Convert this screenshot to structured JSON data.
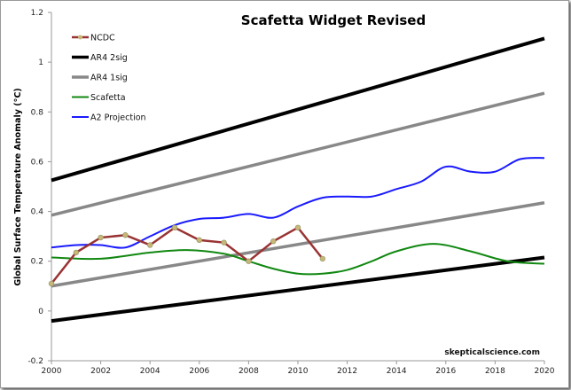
{
  "chart_data": {
    "type": "line",
    "title": "Scafetta Widget Revised",
    "ylabel": "Global Surface Temperature Anomaly (°C)",
    "xlabel": "",
    "xlim": [
      2000,
      2020
    ],
    "ylim": [
      -0.2,
      1.2
    ],
    "xticks": [
      "2000",
      "2002",
      "2004",
      "2006",
      "2008",
      "2010",
      "2012",
      "2014",
      "2016",
      "2018",
      "2020"
    ],
    "yticks": [
      "-0.2",
      "0",
      "0.2",
      "0.4",
      "0.6",
      "0.8",
      "1",
      "1.2"
    ],
    "grid": false,
    "legend_placement": "top-left",
    "watermark": "skepticalscience.com",
    "series": [
      {
        "name": "NCDC",
        "color": "#993333",
        "markers": true,
        "smooth": false,
        "x": [
          2000,
          2001,
          2002,
          2003,
          2004,
          2005,
          2006,
          2007,
          2008,
          2009,
          2010,
          2011
        ],
        "y": [
          0.11,
          0.235,
          0.295,
          0.305,
          0.265,
          0.335,
          0.285,
          0.275,
          0.2,
          0.28,
          0.335,
          0.21
        ]
      },
      {
        "name": "AR4 2sig",
        "color": "#000000",
        "markers": false,
        "smooth": false,
        "x": [
          2000,
          2020
        ],
        "y": [
          0.525,
          1.095
        ],
        "lower": {
          "x": [
            2000,
            2020
          ],
          "y": [
            -0.04,
            0.215
          ]
        }
      },
      {
        "name": "AR4 1sig",
        "color": "#888888",
        "markers": false,
        "smooth": false,
        "x": [
          2000,
          2020
        ],
        "y": [
          0.385,
          0.875
        ],
        "lower": {
          "x": [
            2000,
            2020
          ],
          "y": [
            0.1,
            0.435
          ]
        }
      },
      {
        "name": "Scafetta",
        "color": "#118811",
        "markers": false,
        "smooth": true,
        "x": [
          2000,
          2002,
          2004,
          2005.5,
          2007,
          2008,
          2009,
          2010,
          2011,
          2012,
          2013,
          2014,
          2015.5,
          2017,
          2018.5,
          2020
        ],
        "y": [
          0.215,
          0.21,
          0.235,
          0.245,
          0.23,
          0.2,
          0.17,
          0.15,
          0.15,
          0.165,
          0.2,
          0.24,
          0.27,
          0.24,
          0.2,
          0.19
        ]
      },
      {
        "name": "A2 Projection",
        "color": "#1a1aff",
        "markers": false,
        "smooth": true,
        "x": [
          2000,
          2001,
          2002,
          2003,
          2004,
          2005,
          2006,
          2007,
          2008,
          2009,
          2010,
          2011,
          2012,
          2013,
          2014,
          2015,
          2016,
          2017,
          2018,
          2019,
          2020
        ],
        "y": [
          0.255,
          0.265,
          0.265,
          0.255,
          0.3,
          0.345,
          0.37,
          0.375,
          0.39,
          0.375,
          0.42,
          0.455,
          0.46,
          0.46,
          0.49,
          0.52,
          0.58,
          0.56,
          0.56,
          0.61,
          0.615
        ]
      }
    ]
  }
}
